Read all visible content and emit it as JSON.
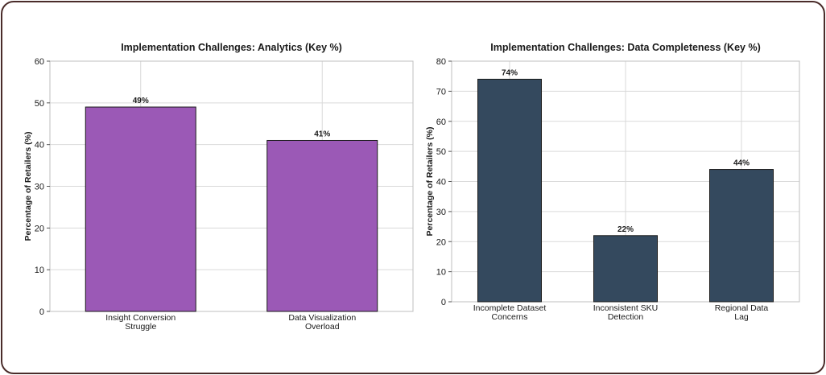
{
  "chart_data": [
    {
      "type": "bar",
      "title": "Implementation Challenges: Analytics (Key %)",
      "ylabel": "Percentage of Retailers (%)",
      "xlabel": "",
      "categories": [
        [
          "Insight Conversion",
          "Struggle"
        ],
        [
          "Data Visualization",
          "Overload"
        ]
      ],
      "values": [
        49,
        41
      ],
      "value_labels": [
        "49%",
        "41%"
      ],
      "ylim": [
        0,
        60
      ],
      "yticks": [
        0,
        10,
        20,
        30,
        40,
        50,
        60
      ],
      "grid": true,
      "color": "#9b59b6"
    },
    {
      "type": "bar",
      "title": "Implementation Challenges: Data Completeness (Key %)",
      "ylabel": "Percentage of Retailers (%)",
      "xlabel": "",
      "categories": [
        [
          "Incomplete Dataset",
          "Concerns"
        ],
        [
          "Inconsistent SKU",
          "Detection"
        ],
        [
          "Regional Data",
          "Lag"
        ]
      ],
      "values": [
        74,
        22,
        44
      ],
      "value_labels": [
        "74%",
        "22%",
        "44%"
      ],
      "ylim": [
        0,
        80
      ],
      "yticks": [
        0,
        10,
        20,
        30,
        40,
        50,
        60,
        70,
        80
      ],
      "grid": true,
      "color": "#34495e"
    }
  ]
}
